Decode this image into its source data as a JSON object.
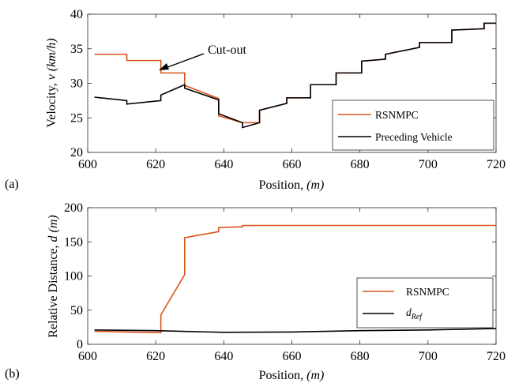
{
  "chart_data": [
    {
      "panel_label": "(a)",
      "type": "line",
      "xlabel": "Position, ",
      "xlabel_unit": "(m)",
      "ylabel": "Velocity, ",
      "ylabel_unit": "v (km/h)",
      "xlim": [
        600,
        720
      ],
      "ylim": [
        20,
        40
      ],
      "xticks": [
        600,
        620,
        640,
        660,
        680,
        700,
        720
      ],
      "yticks": [
        20,
        25,
        30,
        35,
        40
      ],
      "grid": false,
      "legend_position": "lower-right",
      "annotation": {
        "text": "Cut-out",
        "x": 621.5,
        "y": 31.6
      },
      "series": [
        {
          "name": "RSNMPC",
          "color": "#d95319",
          "x": [
            602,
            611.5,
            611.5,
            621.5,
            621.5,
            628.5,
            628.5,
            638.5,
            638.5,
            645.5,
            645.5,
            650.5,
            650.5,
            658.5,
            658.5,
            665.5,
            665.5,
            673,
            673,
            680.5,
            680.5,
            687.5,
            687.5,
            697.5,
            697.5,
            707,
            707,
            716.5,
            716.5,
            720
          ],
          "y": [
            34.2,
            34.2,
            33.3,
            33.3,
            31.5,
            31.5,
            29.7,
            27.8,
            25.3,
            24.3,
            24.3,
            24.3,
            26.1,
            27.1,
            27.9,
            27.9,
            29.8,
            29.8,
            31.5,
            31.5,
            33.2,
            33.5,
            34.2,
            35.2,
            35.9,
            35.9,
            37.7,
            37.9,
            38.7,
            38.7
          ]
        },
        {
          "name": "Preceding Vehicle",
          "color": "#000000",
          "x": [
            602,
            611.5,
            611.5,
            621.5,
            621.5,
            628.5,
            628.5,
            638.5,
            638.5,
            645.5,
            645.5,
            645.5,
            650.5,
            650.5,
            658.5,
            658.5,
            665.5,
            665.5,
            673,
            673,
            680.5,
            680.5,
            687.5,
            687.5,
            697.5,
            697.5,
            707,
            707,
            716.5,
            716.5,
            720
          ],
          "y": [
            28.0,
            27.5,
            27.0,
            27.5,
            28.3,
            29.8,
            29.3,
            27.6,
            25.6,
            24.3,
            24.3,
            23.6,
            24.3,
            26.1,
            27.1,
            27.9,
            27.9,
            29.8,
            29.8,
            31.5,
            31.5,
            33.2,
            33.5,
            34.2,
            35.2,
            35.9,
            35.9,
            37.7,
            37.9,
            38.7,
            38.7
          ]
        }
      ]
    },
    {
      "panel_label": "(b)",
      "type": "line",
      "xlabel": "Position, ",
      "xlabel_unit": "(m)",
      "ylabel": "Relative Distance, ",
      "ylabel_unit": "d (m)",
      "xlim": [
        600,
        720
      ],
      "ylim": [
        0,
        200
      ],
      "xticks": [
        600,
        620,
        640,
        660,
        680,
        700,
        720
      ],
      "yticks": [
        0,
        50,
        100,
        150,
        200
      ],
      "grid": false,
      "legend_position": "lower-right",
      "series": [
        {
          "name": "RSNMPC",
          "color": "#d95319",
          "x": [
            602,
            611.5,
            621.5,
            621.5,
            628.5,
            628.5,
            638.5,
            638.5,
            645.5,
            645.5,
            650,
            720
          ],
          "y": [
            19,
            18,
            17,
            43,
            102,
            156,
            165,
            171,
            172,
            174,
            174,
            174
          ]
        },
        {
          "name": "d",
          "name_sub": "Ref",
          "color": "#000000",
          "x": [
            602,
            620,
            640,
            660,
            680,
            700,
            720
          ],
          "y": [
            21,
            20,
            17.5,
            18,
            20,
            21,
            23
          ]
        }
      ]
    }
  ]
}
